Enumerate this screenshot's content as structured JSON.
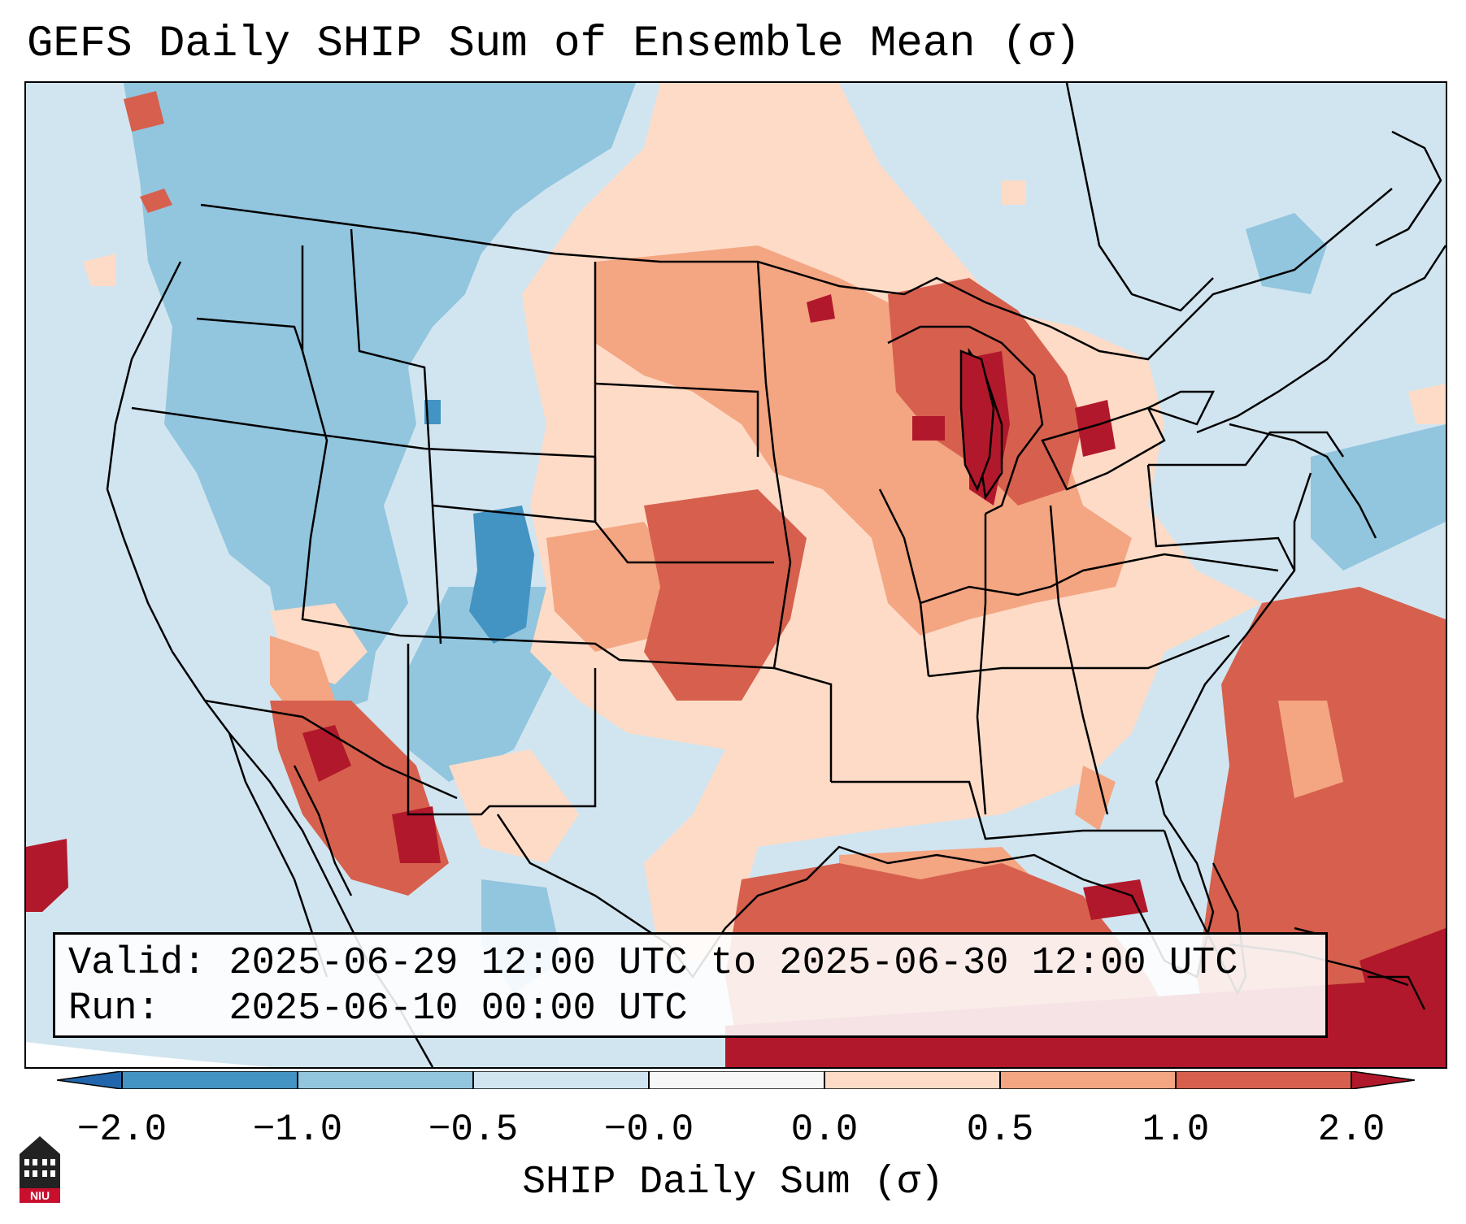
{
  "title": "GEFS Daily SHIP Sum of Ensemble Mean (σ)",
  "info": {
    "valid_label": "Valid:",
    "valid_value": "2025-06-29 12:00 UTC to 2025-06-30 12:00 UTC",
    "run_label": "Run:",
    "run_value": "2025-06-10 00:00 UTC"
  },
  "colorbar": {
    "label": "SHIP Daily Sum (σ)",
    "ticks": [
      "−2.0",
      "−1.0",
      "−0.5",
      "−0.0",
      "0.0",
      "0.5",
      "1.0",
      "2.0"
    ],
    "colors": {
      "under": "#2166ac",
      "bin_m2_m1": "#4393c3",
      "bin_m1_m05": "#92c5de",
      "bin_m05_m0": "#d1e5f0",
      "bin_m0_0": "#f7f7f7",
      "bin_0_05": "#fddbc7",
      "bin_05_1": "#f4a582",
      "bin_1_2": "#d6604d",
      "over": "#b2182b"
    }
  },
  "logo": {
    "text": "NIU",
    "icon": "niu-tower-icon"
  }
}
